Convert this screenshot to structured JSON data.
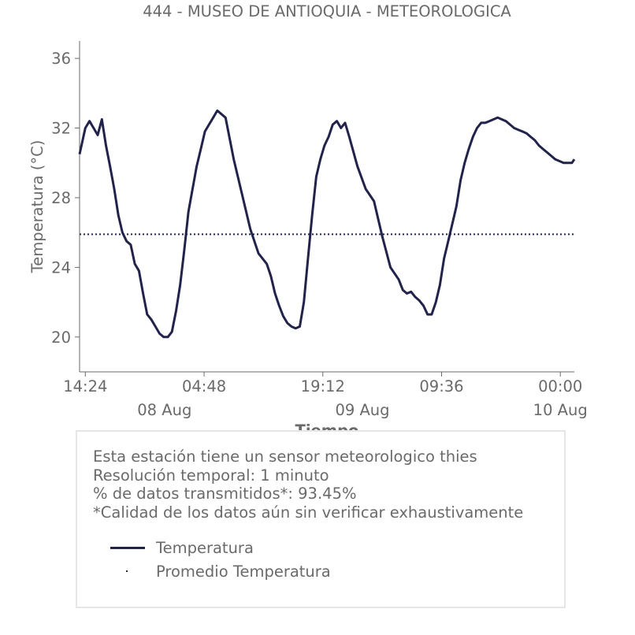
{
  "colors": {
    "line": "#22234a",
    "axis": "#6a6a6a",
    "box_border": "#e6e6e6"
  },
  "chart_data": {
    "type": "line",
    "title": "444 - MUSEO DE ANTIOQUIA - METEOROLOGICA",
    "xlabel": "Tiempo",
    "ylabel": "Temperatura (°C)",
    "ylim": [
      18,
      37
    ],
    "yticks": [
      "20",
      "24",
      "28",
      "32",
      "36"
    ],
    "ytick_values": [
      20,
      24,
      28,
      32,
      36
    ],
    "xlim_hours": [
      -0.7,
      59.3
    ],
    "xtick_labels": [
      "14:24",
      "04:48",
      "19:12",
      "09:36",
      "00:00"
    ],
    "xtick_hours": [
      0,
      14.4,
      28.8,
      43.2,
      57.6
    ],
    "date_labels": [
      "08 Aug",
      "09 Aug",
      "10 Aug"
    ],
    "date_hours": [
      9.6,
      33.6,
      57.6
    ],
    "grid": false,
    "series": [
      {
        "name": "Temperatura",
        "style": "solid",
        "x_hours": [
          -0.7,
          0,
          0.5,
          1,
          1.5,
          2,
          2.5,
          3,
          3.5,
          4,
          4.5,
          5,
          5.5,
          6,
          6.5,
          7,
          7.5,
          8,
          8.5,
          9,
          9.5,
          10,
          10.5,
          11,
          11.5,
          12,
          12.5,
          13,
          13.5,
          14,
          14.5,
          15,
          15.5,
          16,
          17,
          18,
          19,
          20,
          21,
          22,
          22.5,
          23,
          23.5,
          24,
          24.5,
          25,
          25.5,
          26,
          26.5,
          27,
          27.5,
          28,
          28.5,
          29,
          29.5,
          30,
          30.5,
          31,
          31.5,
          32,
          33,
          34,
          35,
          36,
          37,
          38,
          38.5,
          39,
          39.5,
          40,
          40.5,
          41,
          41.5,
          42,
          42.5,
          43,
          43.5,
          44,
          44.5,
          45,
          45.5,
          46,
          46.5,
          47,
          47.5,
          48,
          48.5,
          49,
          49.5,
          50,
          50.5,
          51,
          51.5,
          52,
          52.5,
          53,
          53.5,
          54,
          54.5,
          55,
          55.5,
          56,
          56.5,
          57,
          57.5,
          58,
          58.5,
          59,
          59.3
        ],
        "values": [
          30.5,
          32.0,
          32.4,
          32.0,
          31.6,
          32.5,
          31.0,
          29.8,
          28.5,
          27.0,
          26.0,
          25.5,
          25.3,
          24.2,
          23.8,
          22.5,
          21.3,
          21.0,
          20.6,
          20.2,
          20.0,
          20.0,
          20.3,
          21.5,
          23.0,
          25.0,
          27.2,
          28.5,
          29.8,
          30.8,
          31.8,
          32.2,
          32.6,
          33.0,
          32.6,
          30.2,
          28.2,
          26.2,
          24.8,
          24.2,
          23.5,
          22.5,
          21.8,
          21.2,
          20.8,
          20.6,
          20.5,
          20.6,
          22.0,
          24.5,
          27.0,
          29.2,
          30.2,
          31.0,
          31.5,
          32.2,
          32.4,
          32.0,
          32.3,
          31.5,
          29.8,
          28.5,
          27.8,
          25.8,
          24.0,
          23.3,
          22.7,
          22.5,
          22.6,
          22.3,
          22.1,
          21.8,
          21.3,
          21.3,
          22.0,
          23.0,
          24.5,
          25.5,
          26.5,
          27.5,
          29.0,
          30.0,
          30.8,
          31.5,
          32.0,
          32.3,
          32.3,
          32.4,
          32.5,
          32.6,
          32.5,
          32.4,
          32.2,
          32.0,
          31.9,
          31.8,
          31.7,
          31.5,
          31.3,
          31.0,
          30.8,
          30.6,
          30.4,
          30.2,
          30.1,
          30.0,
          30.0,
          30.0,
          30.2
        ]
      },
      {
        "name": "Promedio Temperatura",
        "style": "dotted",
        "constant": 25.9
      }
    ]
  },
  "info_box": {
    "lines": [
      "Esta estación tiene un sensor meteorologico thies",
      "Resolución temporal: 1 minuto",
      "% de datos transmitidos*: 93.45%",
      "*Calidad de los datos aún sin verificar exhaustivamente"
    ],
    "legend": [
      {
        "label": "Temperatura"
      },
      {
        "label": "Promedio Temperatura"
      }
    ]
  }
}
